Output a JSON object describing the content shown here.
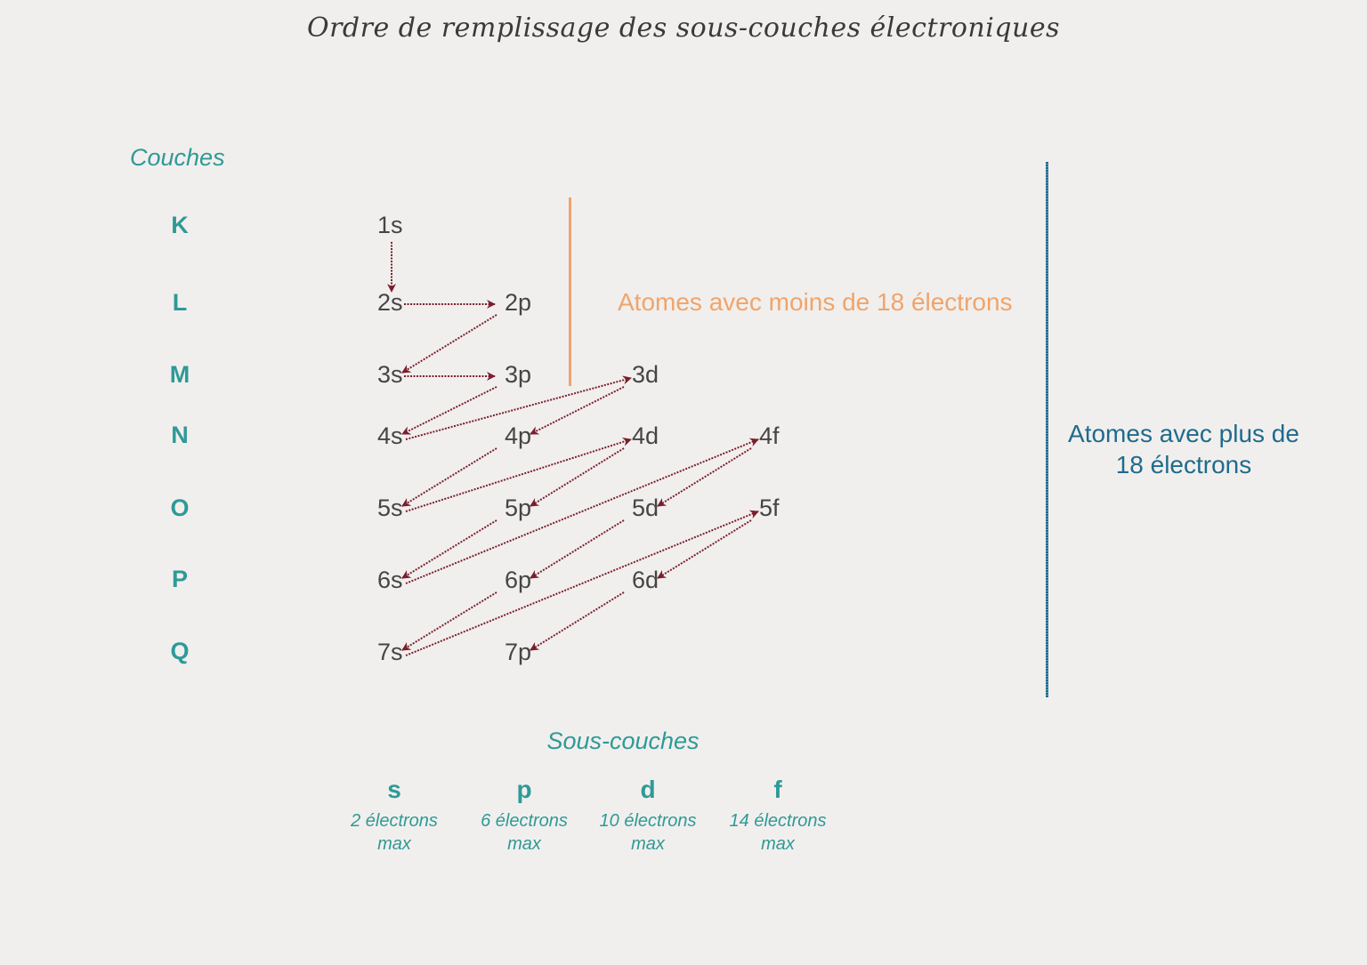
{
  "title": "Ordre de remplissage des sous-couches électroniques",
  "couches_label": "Couches",
  "shells": [
    "K",
    "L",
    "M",
    "N",
    "O",
    "P",
    "Q"
  ],
  "subshells": {
    "K": [
      "1s"
    ],
    "L": [
      "2s",
      "2p"
    ],
    "M": [
      "3s",
      "3p",
      "3d"
    ],
    "N": [
      "4s",
      "4p",
      "4d",
      "4f"
    ],
    "O": [
      "5s",
      "5p",
      "5d",
      "5f"
    ],
    "P": [
      "6s",
      "6p",
      "6d"
    ],
    "Q": [
      "7s",
      "7p"
    ]
  },
  "filling_order": [
    "1s",
    "2s",
    "2p",
    "3s",
    "3p",
    "4s",
    "3d",
    "4p",
    "5s",
    "4d",
    "5p",
    "6s",
    "4f",
    "5d",
    "6p",
    "7s",
    "5f",
    "6d",
    "7p"
  ],
  "annotations": {
    "below_18": "Atomes avec moins de 18 électrons",
    "above_18_line1": "Atomes avec plus de",
    "above_18_line2": "18 électrons"
  },
  "sous_couches_label": "Sous-couches",
  "legend": [
    {
      "letter": "s",
      "line1": "2 électrons",
      "line2": "max"
    },
    {
      "letter": "p",
      "line1": "6 électrons",
      "line2": "max"
    },
    {
      "letter": "d",
      "line1": "10 électrons",
      "line2": "max"
    },
    {
      "letter": "f",
      "line1": "14 électrons",
      "line2": "max"
    }
  ],
  "colors": {
    "teal": "#2e9a97",
    "arrow": "#7a1e2e",
    "orange": "#f0a46c",
    "blue": "#1f6b8d",
    "text": "#454545"
  }
}
